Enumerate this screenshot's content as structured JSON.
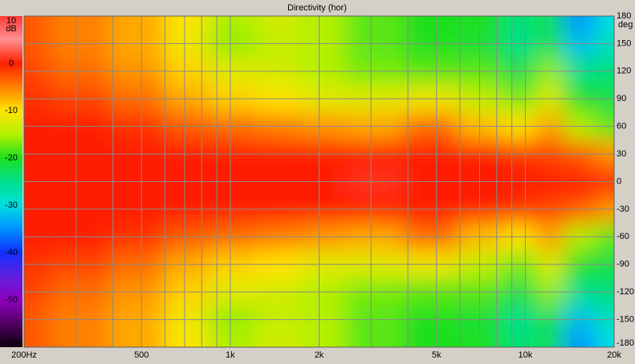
{
  "chart_data": {
    "type": "heatmap",
    "title": "Directivity (hor)",
    "colorbar_unit": "dB",
    "y_unit": "deg",
    "x": [
      200,
      300,
      500,
      700,
      1000,
      1500,
      2000,
      3000,
      5000,
      7000,
      10000,
      12000,
      15000,
      20000
    ],
    "y": [
      180,
      150,
      120,
      90,
      60,
      30,
      0,
      -30,
      -60,
      -90,
      -120,
      -150,
      -180
    ],
    "z": [
      [
        -3,
        -5,
        -7,
        -10,
        -15,
        -13,
        -15,
        -18,
        -20,
        -20,
        -24,
        -22,
        -35,
        -30
      ],
      [
        -3,
        -5,
        -7,
        -11,
        -16,
        -14,
        -15,
        -18,
        -20,
        -21,
        -25,
        -22,
        -32,
        -28
      ],
      [
        -2,
        -4,
        -6,
        -9,
        -12,
        -13,
        -15,
        -17,
        -18,
        -18,
        -22,
        -16,
        -25,
        -24
      ],
      [
        -1,
        -2,
        -4,
        -7,
        -9,
        -10,
        -12,
        -12,
        -11,
        -14,
        -17,
        -12,
        -20,
        -22
      ],
      [
        0,
        0,
        -1,
        -3,
        -4,
        -5,
        -6,
        -7,
        -4,
        -8,
        -10,
        -6,
        -15,
        -18
      ],
      [
        0,
        0,
        0,
        0,
        0,
        0,
        0,
        0,
        0,
        0,
        -1,
        -2,
        -3,
        -6
      ],
      [
        0,
        0,
        0,
        0,
        0,
        0,
        0,
        1,
        0,
        0,
        0,
        0,
        0,
        0
      ],
      [
        0,
        0,
        0,
        0,
        0,
        0,
        0,
        0,
        0,
        0,
        -1,
        -2,
        -3,
        -6
      ],
      [
        0,
        0,
        -1,
        -3,
        -4,
        -5,
        -6,
        -7,
        -4,
        -8,
        -10,
        -6,
        -15,
        -18
      ],
      [
        -1,
        -2,
        -4,
        -7,
        -9,
        -10,
        -12,
        -12,
        -11,
        -14,
        -17,
        -12,
        -20,
        -22
      ],
      [
        -2,
        -4,
        -6,
        -9,
        -12,
        -13,
        -15,
        -17,
        -18,
        -18,
        -22,
        -16,
        -25,
        -24
      ],
      [
        -3,
        -5,
        -7,
        -11,
        -16,
        -14,
        -15,
        -18,
        -20,
        -21,
        -25,
        -22,
        -32,
        -28
      ],
      [
        -3,
        -5,
        -7,
        -10,
        -15,
        -13,
        -15,
        -18,
        -20,
        -20,
        -24,
        -22,
        -35,
        -30
      ]
    ],
    "xscale": "log",
    "xlim": [
      200,
      20000
    ],
    "xticks": [
      {
        "value": 200,
        "label": "200Hz"
      },
      500,
      {
        "value": 1000,
        "label": "1k"
      },
      {
        "value": 2000,
        "label": "2k"
      },
      {
        "value": 5000,
        "label": "5k"
      },
      {
        "value": 10000,
        "label": "10k"
      },
      {
        "value": 20000,
        "label": "20k"
      }
    ],
    "xgrid": [
      300,
      400,
      500,
      600,
      700,
      800,
      900,
      1000,
      2000,
      3000,
      4000,
      5000,
      6000,
      7000,
      8000,
      9000,
      10000
    ],
    "ylim": [
      -180,
      180
    ],
    "yticks": [
      180,
      150,
      120,
      90,
      60,
      30,
      0,
      -30,
      -60,
      -90,
      -120,
      -150,
      -180
    ],
    "zlim": [
      -60,
      10
    ],
    "zticks": [
      10,
      0,
      -10,
      -20,
      -30,
      -40,
      -50,
      -60
    ],
    "colorscale": [
      [
        10,
        "#ff3a3a"
      ],
      [
        5,
        "#ff9090"
      ],
      [
        0,
        "#ff1e00"
      ],
      [
        -5,
        "#ff8000"
      ],
      [
        -10,
        "#ffe400"
      ],
      [
        -15,
        "#b4f000"
      ],
      [
        -20,
        "#1ee01e"
      ],
      [
        -25,
        "#00e08c"
      ],
      [
        -30,
        "#00e0e0"
      ],
      [
        -35,
        "#0090ff"
      ],
      [
        -40,
        "#1030ff"
      ],
      [
        -45,
        "#6020e0"
      ],
      [
        -50,
        "#9000c0"
      ],
      [
        -55,
        "#500060"
      ],
      [
        -60,
        "#100010"
      ]
    ],
    "grid": true,
    "grid_color": "#8a8a8a"
  }
}
